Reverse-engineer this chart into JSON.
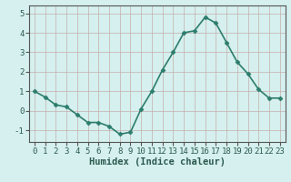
{
  "xlabel": "Humidex (Indice chaleur)",
  "x": [
    0,
    1,
    2,
    3,
    4,
    5,
    6,
    7,
    8,
    9,
    10,
    11,
    12,
    13,
    14,
    15,
    16,
    17,
    18,
    19,
    20,
    21,
    22,
    23
  ],
  "y": [
    1.0,
    0.7,
    0.3,
    0.2,
    -0.2,
    -0.6,
    -0.6,
    -0.8,
    -1.2,
    -1.1,
    0.1,
    1.0,
    2.1,
    3.0,
    4.0,
    4.1,
    4.8,
    4.5,
    3.5,
    2.5,
    1.9,
    1.1,
    0.65,
    0.65
  ],
  "line_color": "#2d7d6d",
  "marker": "D",
  "marker_size": 2.5,
  "linewidth": 1.2,
  "background_color": "#d5f0ee",
  "plot_bg_color": "#d5f0ee",
  "grid_color": "#c4a8a8",
  "ylim": [
    -1.6,
    5.4
  ],
  "xlim": [
    -0.5,
    23.5
  ],
  "yticks": [
    -1,
    0,
    1,
    2,
    3,
    4,
    5
  ],
  "xticks": [
    0,
    1,
    2,
    3,
    4,
    5,
    6,
    7,
    8,
    9,
    10,
    11,
    12,
    13,
    14,
    15,
    16,
    17,
    18,
    19,
    20,
    21,
    22,
    23
  ],
  "tick_fontsize": 6.5,
  "xlabel_fontsize": 7.5,
  "spine_color": "#555555"
}
